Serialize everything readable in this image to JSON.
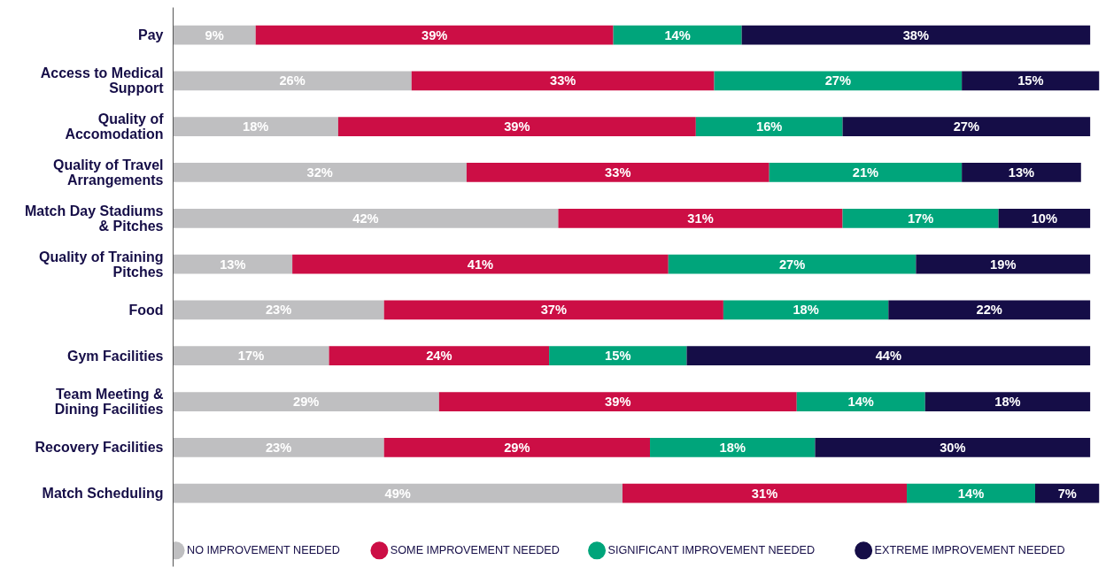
{
  "chart_data": {
    "type": "bar",
    "orientation": "horizontal",
    "stacked": true,
    "categories": [
      "Pay",
      "Access to Medical Support",
      "Quality of Accomodation",
      "Quality of Travel Arrangements",
      "Match Day Stadiums & Pitches",
      "Quality of Training Pitches",
      "Food",
      "Gym Facilities",
      "Team Meeting & Dining Facilities",
      "Recovery Facilities",
      "Match Scheduling"
    ],
    "xlim": [
      0,
      101
    ],
    "series": [
      {
        "name": "NO IMPROVEMENT NEEDED",
        "color": "#bfbfc1",
        "values": [
          9,
          26,
          18,
          32,
          42,
          13,
          23,
          17,
          29,
          23,
          49
        ],
        "value_labels": [
          "9%",
          "26%",
          "18%",
          "32%",
          "42%",
          "13%",
          "23%",
          "17%",
          "29%",
          "23%",
          "49%"
        ]
      },
      {
        "name": "SOME IMPROVEMENT NEEDED",
        "color": "#cc0e45",
        "values": [
          39,
          33,
          39,
          33,
          31,
          41,
          37,
          24,
          39,
          29,
          31
        ],
        "value_labels": [
          "39%",
          "33%",
          "39%",
          "33%",
          "31%",
          "41%",
          "37%",
          "24%",
          "39%",
          "29%",
          "31%"
        ]
      },
      {
        "name": "SIGNIFICANT IMPROVEMENT NEEDED",
        "color": "#00a57b",
        "values": [
          14,
          27,
          16,
          21,
          17,
          27,
          18,
          15,
          14,
          18,
          14
        ],
        "value_labels": [
          "14%",
          "27%",
          "16%",
          "21%",
          "17%",
          "27%",
          "18%",
          "15%",
          "14%",
          "18%",
          "14%"
        ]
      },
      {
        "name": "EXTREME IMPROVEMENT NEEDED",
        "color": "#150d47",
        "values": [
          38,
          15,
          27,
          13,
          10,
          19,
          22,
          44,
          18,
          30,
          7
        ],
        "value_labels": [
          "38%",
          "15%",
          "27%",
          "13%",
          "10%",
          "19%",
          "22%",
          "44%",
          "18%",
          "30%",
          "7%"
        ]
      }
    ],
    "legend": "bottom",
    "grid": false,
    "tick_labels": "y"
  }
}
